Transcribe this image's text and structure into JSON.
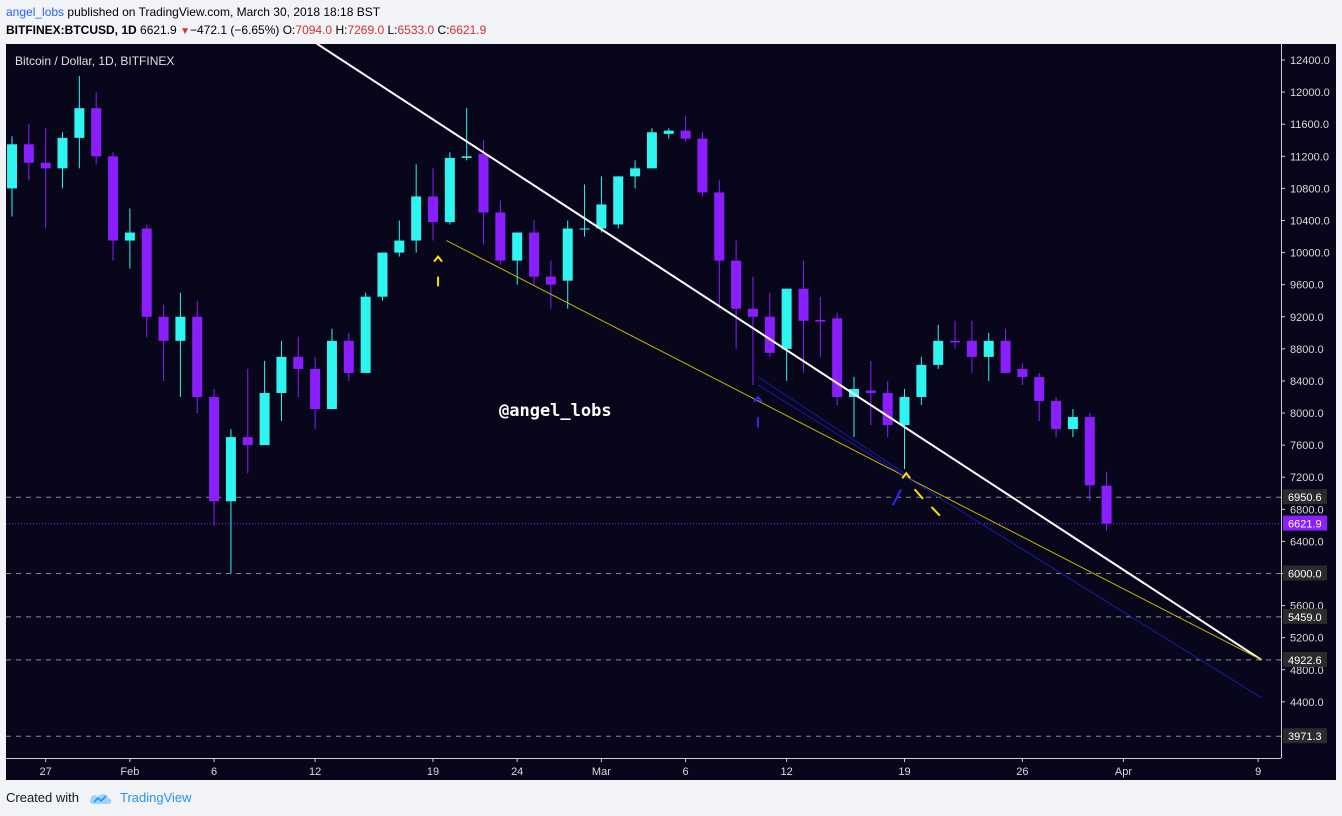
{
  "header": {
    "author": "angel_lobs",
    "published_text": "published on TradingView.com, March 30, 2018 18:18 BST",
    "symbol": "BITFINEX:BTCUSD, 1D",
    "last": "6621.9",
    "change_arrow": "▼",
    "change": "−472.1 (−6.65%)",
    "o_label": "O:",
    "o_value": "7094.0",
    "h_label": "H:",
    "h_value": "7269.0",
    "l_label": "L:",
    "l_value": "6533.0",
    "c_label": "C:",
    "c_value": "6621.9"
  },
  "footer": {
    "created_with": "Created with",
    "brand": "TradingView"
  },
  "chart_data": {
    "type": "candlestick",
    "title": "Bitcoin / Dollar, 1D, BITFINEX",
    "watermark": "@angel_lobs",
    "ylim": [
      3700,
      12600
    ],
    "y_ticks": [
      4400,
      4800,
      5200,
      5600,
      6000,
      6400,
      6800,
      7200,
      7600,
      8000,
      8400,
      8800,
      9200,
      9600,
      10000,
      10400,
      10800,
      11200,
      11600,
      12000,
      12400
    ],
    "y_tick_labels": [
      "4400.0",
      "4800.0",
      "5200.0",
      "5600.0",
      "6000.0",
      "6400.0",
      "6800.0",
      "7200.0",
      "7600.0",
      "8000.0",
      "8400.0",
      "8800.0",
      "9200.0",
      "9600.0",
      "10000.0",
      "10400.0",
      "10800.0",
      "11200.0",
      "11600.0",
      "12000.0",
      "12400.0"
    ],
    "x_ticks": [
      {
        "label": "27",
        "day": 2
      },
      {
        "label": "Feb",
        "day": 7
      },
      {
        "label": "6",
        "day": 12
      },
      {
        "label": "12",
        "day": 18
      },
      {
        "label": "19",
        "day": 25
      },
      {
        "label": "24",
        "day": 30
      },
      {
        "label": "Mar",
        "day": 35
      },
      {
        "label": "6",
        "day": 40
      },
      {
        "label": "12",
        "day": 46
      },
      {
        "label": "19",
        "day": 53
      },
      {
        "label": "26",
        "day": 60
      },
      {
        "label": "Apr",
        "day": 66
      },
      {
        "label": "9",
        "day": 74
      }
    ],
    "candles": [
      {
        "o": 10800,
        "h": 11450,
        "l": 10450,
        "c": 11350
      },
      {
        "o": 11350,
        "h": 11600,
        "l": 10900,
        "c": 11120
      },
      {
        "o": 11120,
        "h": 11550,
        "l": 10300,
        "c": 11050
      },
      {
        "o": 11050,
        "h": 11500,
        "l": 10800,
        "c": 11430
      },
      {
        "o": 11430,
        "h": 12200,
        "l": 11050,
        "c": 11800
      },
      {
        "o": 11800,
        "h": 12000,
        "l": 11100,
        "c": 11200
      },
      {
        "o": 11200,
        "h": 11250,
        "l": 9900,
        "c": 10150
      },
      {
        "o": 10150,
        "h": 10550,
        "l": 9800,
        "c": 10250
      },
      {
        "o": 10300,
        "h": 10350,
        "l": 8950,
        "c": 9200
      },
      {
        "o": 9200,
        "h": 9350,
        "l": 8400,
        "c": 8900
      },
      {
        "o": 8900,
        "h": 9500,
        "l": 8200,
        "c": 9200
      },
      {
        "o": 9200,
        "h": 9400,
        "l": 8000,
        "c": 8200
      },
      {
        "o": 8200,
        "h": 8300,
        "l": 6600,
        "c": 6900
      },
      {
        "o": 6900,
        "h": 7800,
        "l": 6000,
        "c": 7700
      },
      {
        "o": 7700,
        "h": 8550,
        "l": 7250,
        "c": 7600
      },
      {
        "o": 7600,
        "h": 8650,
        "l": 7600,
        "c": 8250
      },
      {
        "o": 8250,
        "h": 8900,
        "l": 7900,
        "c": 8700
      },
      {
        "o": 8700,
        "h": 8950,
        "l": 8200,
        "c": 8550
      },
      {
        "o": 8550,
        "h": 8700,
        "l": 7800,
        "c": 8050
      },
      {
        "o": 8050,
        "h": 9050,
        "l": 8050,
        "c": 8900
      },
      {
        "o": 8900,
        "h": 9000,
        "l": 8400,
        "c": 8500
      },
      {
        "o": 8500,
        "h": 9500,
        "l": 8500,
        "c": 9450
      },
      {
        "o": 9450,
        "h": 10000,
        "l": 9400,
        "c": 10000
      },
      {
        "o": 10000,
        "h": 10400,
        "l": 9950,
        "c": 10150
      },
      {
        "o": 10150,
        "h": 11100,
        "l": 10000,
        "c": 10700
      },
      {
        "o": 10700,
        "h": 11050,
        "l": 10150,
        "c": 10380
      },
      {
        "o": 10380,
        "h": 11250,
        "l": 10350,
        "c": 11180
      },
      {
        "o": 11180,
        "h": 11800,
        "l": 11150,
        "c": 11200
      },
      {
        "o": 11230,
        "h": 11400,
        "l": 10100,
        "c": 10500
      },
      {
        "o": 10500,
        "h": 10650,
        "l": 9850,
        "c": 9900
      },
      {
        "o": 9900,
        "h": 10250,
        "l": 9600,
        "c": 10250
      },
      {
        "o": 10250,
        "h": 10400,
        "l": 9600,
        "c": 9700
      },
      {
        "o": 9700,
        "h": 9900,
        "l": 9300,
        "c": 9600
      },
      {
        "o": 9650,
        "h": 10400,
        "l": 9300,
        "c": 10300
      },
      {
        "o": 10300,
        "h": 10850,
        "l": 10200,
        "c": 10300
      },
      {
        "o": 10300,
        "h": 10950,
        "l": 10250,
        "c": 10600
      },
      {
        "o": 10350,
        "h": 10950,
        "l": 10300,
        "c": 10950
      },
      {
        "o": 10950,
        "h": 11150,
        "l": 10800,
        "c": 11050
      },
      {
        "o": 11050,
        "h": 11550,
        "l": 11050,
        "c": 11500
      },
      {
        "o": 11480,
        "h": 11550,
        "l": 11420,
        "c": 11520
      },
      {
        "o": 11520,
        "h": 11700,
        "l": 11380,
        "c": 11420
      },
      {
        "o": 11420,
        "h": 11500,
        "l": 10700,
        "c": 10750
      },
      {
        "o": 10750,
        "h": 10900,
        "l": 9300,
        "c": 9900
      },
      {
        "o": 9900,
        "h": 10150,
        "l": 8800,
        "c": 9300
      },
      {
        "o": 9300,
        "h": 9700,
        "l": 8350,
        "c": 9200
      },
      {
        "o": 9200,
        "h": 9500,
        "l": 8700,
        "c": 8750
      },
      {
        "o": 8800,
        "h": 9550,
        "l": 8400,
        "c": 9550
      },
      {
        "o": 9550,
        "h": 9900,
        "l": 8500,
        "c": 9150
      },
      {
        "o": 9160,
        "h": 9450,
        "l": 8700,
        "c": 9140
      },
      {
        "o": 9180,
        "h": 9250,
        "l": 8100,
        "c": 8200
      },
      {
        "o": 8200,
        "h": 8450,
        "l": 7700,
        "c": 8300
      },
      {
        "o": 8280,
        "h": 8650,
        "l": 7850,
        "c": 8250
      },
      {
        "o": 8250,
        "h": 8400,
        "l": 7700,
        "c": 7850
      },
      {
        "o": 7850,
        "h": 8300,
        "l": 7300,
        "c": 8200
      },
      {
        "o": 8200,
        "h": 8700,
        "l": 8100,
        "c": 8600
      },
      {
        "o": 8600,
        "h": 9100,
        "l": 8550,
        "c": 8900
      },
      {
        "o": 8900,
        "h": 9150,
        "l": 8800,
        "c": 8880
      },
      {
        "o": 8900,
        "h": 9150,
        "l": 8500,
        "c": 8700
      },
      {
        "o": 8700,
        "h": 9000,
        "l": 8400,
        "c": 8900
      },
      {
        "o": 8900,
        "h": 9050,
        "l": 8500,
        "c": 8500
      },
      {
        "o": 8550,
        "h": 8620,
        "l": 8350,
        "c": 8450
      },
      {
        "o": 8450,
        "h": 8500,
        "l": 7900,
        "c": 8150
      },
      {
        "o": 8150,
        "h": 8200,
        "l": 7700,
        "c": 7800
      },
      {
        "o": 7800,
        "h": 8050,
        "l": 7700,
        "c": 7950
      },
      {
        "o": 7950,
        "h": 8000,
        "l": 6900,
        "c": 7100
      },
      {
        "o": 7094,
        "h": 7269,
        "l": 6533,
        "c": 6621.9
      }
    ],
    "lines": [
      {
        "name": "white trendline",
        "color": "#ffffff",
        "points": [
          [
            17.4,
            12700
          ],
          [
            74.2,
            4922.6
          ]
        ]
      },
      {
        "name": "yellow trendline",
        "color": "#c8b400",
        "points": [
          [
            25.8,
            10150
          ],
          [
            74.2,
            4922.6
          ]
        ]
      },
      {
        "name": "blue channel line",
        "color": "#1a1aaa",
        "points": [
          [
            44.3,
            8350
          ],
          [
            74.2,
            4450
          ]
        ]
      }
    ],
    "levels": [
      {
        "value": 6950.6,
        "label": "6950.6"
      },
      {
        "value": 6000,
        "label": "6000.0"
      },
      {
        "value": 5459,
        "label": "5459.0"
      },
      {
        "value": 4922.6,
        "label": "4922.6"
      },
      {
        "value": 3971.3,
        "label": "3971.3"
      }
    ],
    "last_price": {
      "value": 6621.9,
      "label": "6621.9",
      "color": "#8a1eff"
    },
    "colors": {
      "up": "#2ff5f0",
      "down": "#8a1eff",
      "background": "#08061a",
      "axis_text": "#d9d9d9",
      "level_tag": "#3a3a3a"
    }
  }
}
